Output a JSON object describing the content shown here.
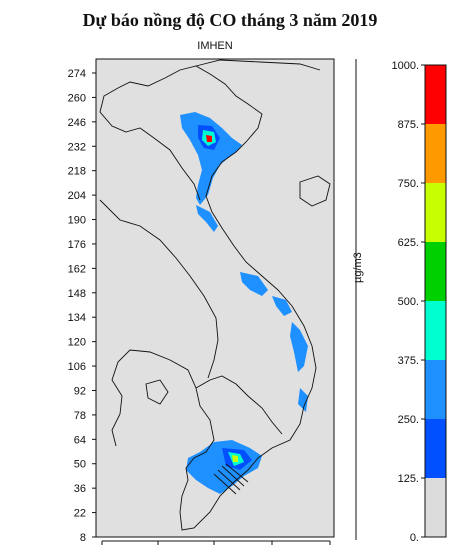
{
  "title": "Dự báo nồng độ CO tháng 3 năm 2019",
  "subtitle": "IMHEN",
  "y_axis": {
    "ticks": [
      "274",
      "260",
      "246",
      "232",
      "218",
      "204",
      "190",
      "176",
      "162",
      "148",
      "134",
      "120",
      "106",
      "92",
      "78",
      "64",
      "50",
      "36",
      "22",
      "8"
    ]
  },
  "colorbar": {
    "unit": "µg/m3",
    "levels": [
      "0.",
      "125.",
      "250.",
      "375.",
      "500.",
      "625.",
      "750.",
      "875.",
      "1000."
    ],
    "colors": [
      "#dcdcdc",
      "#0050ff",
      "#1e90ff",
      "#00ffd0",
      "#00d000",
      "#c8ff00",
      "#ff9900",
      "#ff0000"
    ]
  },
  "map": {
    "background": "#e0e0e0",
    "outline_color": "#111111"
  }
}
